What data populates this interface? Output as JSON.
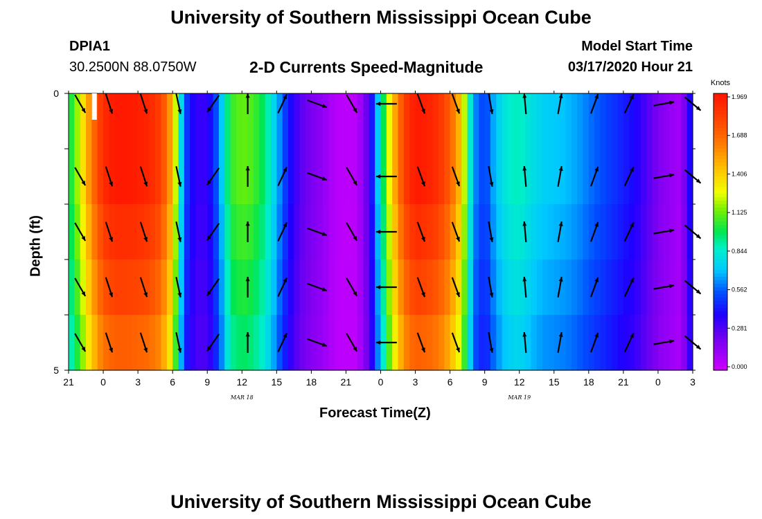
{
  "header": {
    "main_title": "University of Southern Mississippi Ocean Cube",
    "footer_title": "University of Southern Mississippi Ocean Cube",
    "station_id": "DPIA1",
    "station_coords": "30.2500N 88.0750W",
    "model_label": "Model Start Time",
    "model_time": "03/17/2020 Hour 21"
  },
  "chart_data": {
    "type": "heatmap",
    "title": "2-D Currents Speed-Magnitude",
    "xlabel": "Forecast Time(Z)",
    "ylabel": "Depth (ft)",
    "x_range_hours": [
      0,
      54
    ],
    "y_range": [
      0,
      5
    ],
    "x_tick_labels": [
      "21",
      "0",
      "3",
      "6",
      "9",
      "12",
      "15",
      "18",
      "21",
      "0",
      "3",
      "6",
      "9",
      "12",
      "15",
      "18",
      "21",
      "0",
      "3"
    ],
    "y_tick_labels": [
      "0",
      "5"
    ],
    "date_labels": [
      {
        "text": "MAR 18",
        "hour": 15
      },
      {
        "text": "MAR 19",
        "hour": 39
      }
    ],
    "colorbar": {
      "label": "Knots",
      "ticks": [
        "1.969",
        "1.688",
        "1.406",
        "1.125",
        "0.844",
        "0.562",
        "0.281",
        "0.000"
      ],
      "min": 0,
      "max": 1.969
    },
    "speed_profile_hours": [
      0,
      1,
      2,
      3,
      4,
      5,
      6,
      7,
      8,
      9,
      10,
      11,
      12,
      13,
      14,
      15,
      16,
      17,
      18,
      19,
      20,
      21,
      22,
      23,
      24,
      25,
      26,
      27,
      28,
      29,
      30,
      31,
      32,
      33,
      34,
      35,
      36,
      37,
      38,
      39,
      40,
      41,
      42,
      43,
      44,
      45,
      46,
      47,
      48,
      49,
      50,
      51,
      52,
      53,
      54
    ],
    "speed_profile_knots": [
      0.95,
      1.25,
      1.62,
      1.88,
      1.95,
      1.95,
      1.93,
      1.9,
      1.8,
      1.45,
      0.55,
      0.35,
      0.35,
      0.6,
      1.05,
      1.12,
      1.08,
      0.95,
      0.7,
      0.45,
      0.28,
      0.2,
      0.15,
      0.06,
      0.04,
      0.05,
      0.3,
      0.85,
      1.4,
      1.8,
      1.95,
      1.92,
      1.86,
      1.7,
      1.4,
      0.65,
      0.5,
      0.72,
      0.85,
      0.88,
      0.8,
      0.74,
      0.72,
      0.7,
      0.66,
      0.6,
      0.55,
      0.5,
      0.45,
      0.4,
      0.3,
      0.2,
      0.14,
      0.1,
      0.5
    ],
    "depth_factors": [
      1.0,
      1.0,
      0.96,
      0.92,
      0.87
    ],
    "arrow_hours": [
      1,
      3.5,
      6.5,
      9.5,
      12.5,
      15.5,
      18.5,
      21.5,
      24.5,
      27.5,
      30.5,
      33.5,
      36.5,
      39.5,
      42.5,
      45.5,
      48.5,
      51.5,
      54
    ],
    "arrow_directions_deg": [
      150,
      162,
      162,
      168,
      215,
      0,
      25,
      110,
      150,
      270,
      160,
      160,
      170,
      355,
      10,
      20,
      25,
      80,
      130
    ]
  }
}
